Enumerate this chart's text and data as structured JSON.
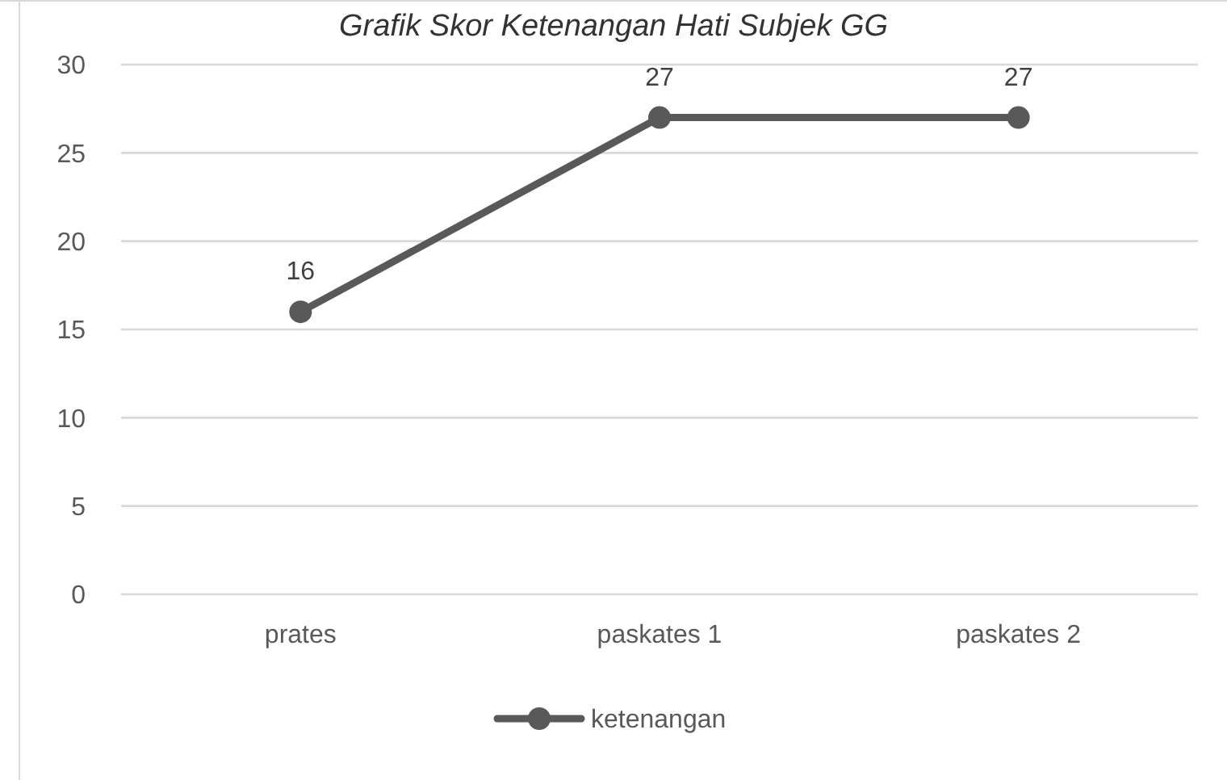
{
  "chart_data": {
    "type": "line",
    "title": "Grafik Skor Ketenangan Hati Subjek GG",
    "categories": [
      "prates",
      "paskates 1",
      "paskates 2"
    ],
    "series": [
      {
        "name": "ketenangan",
        "color": "#595959",
        "values": [
          16,
          27,
          27
        ]
      }
    ],
    "ylim": [
      0,
      30
    ],
    "yticks": [
      0,
      5,
      10,
      15,
      20,
      25,
      30
    ],
    "grid": "y",
    "legend": "bottom",
    "marker": "circle",
    "line_style": "solid",
    "data_labels": true
  }
}
